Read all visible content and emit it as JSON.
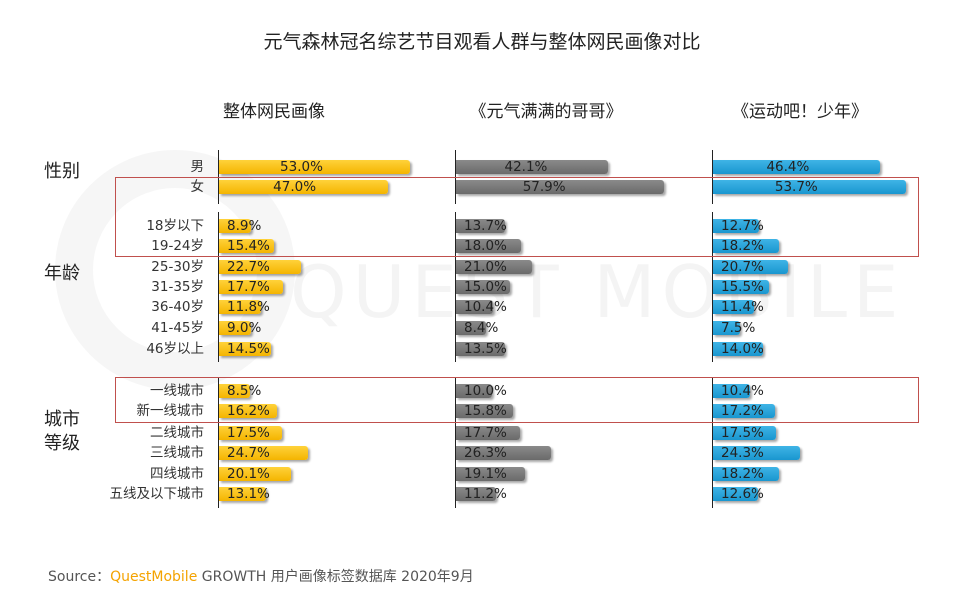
{
  "title": "元气森林冠名综艺节目观看人群与整体网民画像对比",
  "watermark": "QUEST MOBILE",
  "columns": [
    "整体网民画像",
    "《元气满满的哥哥》",
    "《运动吧！少年》"
  ],
  "categories": {
    "gender": "性别",
    "age": "年龄",
    "city_line1": "城市",
    "city_line2": "等级"
  },
  "source": {
    "prefix": "Source：",
    "brand": "QuestMobile",
    "rest": " GROWTH 用户画像标签数据库 2020年9月"
  },
  "colors": {
    "overall": "#f4b400",
    "show1": "#6f6f6f",
    "show2": "#1996cf",
    "highlight": "#c0504d"
  },
  "chart_data": {
    "type": "bar",
    "title": "元气森林冠名综艺节目观看人群与整体网民画像对比",
    "categories": [
      "男",
      "女",
      "18岁以下",
      "19-24岁",
      "25-30岁",
      "31-35岁",
      "36-40岁",
      "41-45岁",
      "46岁以上",
      "一线城市",
      "新一线城市",
      "二线城市",
      "三线城市",
      "四线城市",
      "五线及以下城市"
    ],
    "series": [
      {
        "name": "整体网民画像",
        "values": [
          53.0,
          47.0,
          8.9,
          15.4,
          22.7,
          17.7,
          11.8,
          9.0,
          14.5,
          8.5,
          16.2,
          17.5,
          24.7,
          20.1,
          13.1
        ],
        "labels": [
          "53.0%",
          "47.0%",
          "8.9%",
          "15.4%",
          "22.7%",
          "17.7%",
          "11.8%",
          "9.0%",
          "14.5%",
          "8.5%",
          "16.2%",
          "17.5%",
          "24.7%",
          "20.1%",
          "13.1%"
        ]
      },
      {
        "name": "《元气满满的哥哥》",
        "values": [
          42.1,
          57.9,
          13.7,
          18.0,
          21.0,
          15.0,
          10.4,
          8.4,
          13.5,
          10.0,
          15.8,
          17.7,
          26.3,
          19.1,
          11.2
        ],
        "labels": [
          "42.1%",
          "57.9%",
          "13.7%",
          "18.0%",
          "21.0%",
          "15.0%",
          "10.4%",
          "8.4%",
          "13.5%",
          "10.0%",
          "15.8%",
          "17.7%",
          "26.3%",
          "19.1%",
          "11.2%"
        ]
      },
      {
        "name": "《运动吧！少年》",
        "values": [
          46.4,
          53.7,
          12.7,
          18.2,
          20.7,
          15.5,
          11.4,
          7.5,
          14.0,
          10.4,
          17.2,
          17.5,
          24.3,
          18.2,
          12.6
        ],
        "labels": [
          "46.4%",
          "53.7%",
          "12.7%",
          "18.2%",
          "20.7%",
          "15.5%",
          "11.4%",
          "7.5%",
          "14.0%",
          "10.4%",
          "17.2%",
          "17.5%",
          "24.3%",
          "18.2%",
          "12.6%"
        ]
      }
    ],
    "ylim": [
      0,
      60
    ]
  }
}
